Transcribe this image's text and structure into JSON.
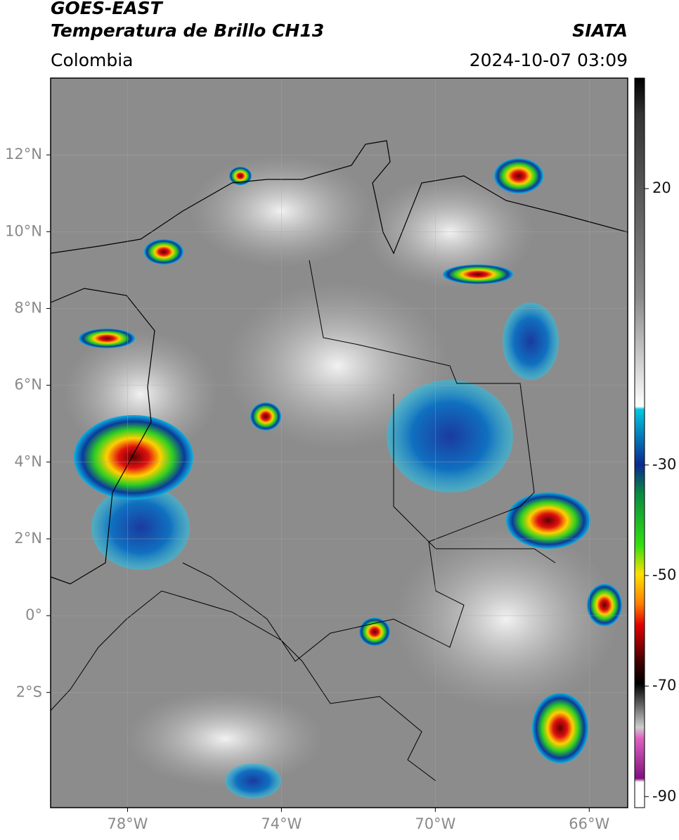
{
  "header": {
    "title": "GOES-EAST",
    "subtitle": "Temperatura de Brillo CH13",
    "source": "SIATA",
    "region": "Colombia",
    "datetime": "2024-10-07 03:09"
  },
  "map": {
    "xlim": [
      -80,
      -65
    ],
    "ylim": [
      -5,
      14
    ],
    "xticks": [
      {
        "value": -78,
        "label": "78°W"
      },
      {
        "value": -74,
        "label": "74°W"
      },
      {
        "value": -70,
        "label": "70°W"
      },
      {
        "value": -66,
        "label": "66°W"
      }
    ],
    "yticks": [
      {
        "value": 12,
        "label": "12°N"
      },
      {
        "value": 10,
        "label": "10°N"
      },
      {
        "value": 8,
        "label": "8°N"
      },
      {
        "value": 6,
        "label": "6°N"
      },
      {
        "value": 4,
        "label": "4°N"
      },
      {
        "value": 2,
        "label": "2°N"
      },
      {
        "value": 0,
        "label": "0°"
      },
      {
        "value": -2,
        "label": "2°S"
      }
    ],
    "grid": true
  },
  "colorbar": {
    "lim": [
      -92,
      40
    ],
    "ticks": [
      20,
      -30,
      -50,
      -70,
      -90
    ]
  }
}
